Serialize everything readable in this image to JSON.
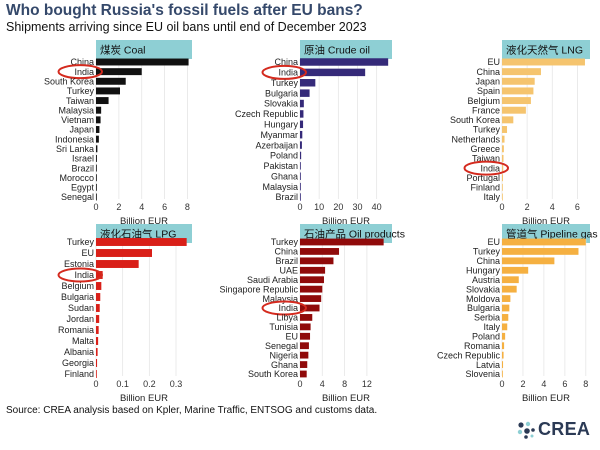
{
  "header": {
    "title": "Who bought Russia's fossil fuels after EU bans?",
    "subtitle": "Shipments arriving since EU oil bans until end of December 2023"
  },
  "footer": {
    "source": "Source: CREA analysis based on Kpler, Marine Traffic, ENTSOG and customs data.",
    "logo_text": "CREA"
  },
  "colors": {
    "panel_header_bg": "#8ecfd4",
    "grid": "#e6e6e6",
    "highlight_ring": "#d42a1e",
    "title": "#35496b"
  },
  "highlight_category": "India",
  "chart_data": [
    {
      "type": "bar",
      "orientation": "horizontal",
      "title": "煤炭  Coal",
      "xlabel": "Billion EUR",
      "color": "#111111",
      "xlim": [
        0,
        8.4
      ],
      "xticks": [
        0,
        2,
        4,
        6,
        8
      ],
      "categories": [
        "China",
        "India",
        "South Korea",
        "Turkey",
        "Taiwan",
        "Malaysia",
        "Vietnam",
        "Japan",
        "Indonesia",
        "Sri Lanka",
        "Israel",
        "Brazil",
        "Morocco",
        "Egypt",
        "Senegal"
      ],
      "values": [
        8.1,
        4.0,
        2.6,
        2.1,
        1.1,
        0.45,
        0.4,
        0.3,
        0.25,
        0.12,
        0.08,
        0.06,
        0.05,
        0.04,
        0.03
      ]
    },
    {
      "type": "bar",
      "orientation": "horizontal",
      "title": "原油  Crude oil",
      "xlabel": "Billion EUR",
      "color": "#352a79",
      "xlim": [
        0,
        48
      ],
      "xticks": [
        0,
        10,
        20,
        30,
        40
      ],
      "categories": [
        "China",
        "India",
        "Turkey",
        "Bulgaria",
        "Slovakia",
        "Czech Republic",
        "Hungary",
        "Myanmar",
        "Azerbaijan",
        "Poland",
        "Pakistan",
        "Ghana",
        "Malaysia",
        "Brazil"
      ],
      "values": [
        46,
        34,
        8,
        5,
        2,
        1.8,
        1.6,
        1.2,
        1.0,
        0.6,
        0.4,
        0.3,
        0.2,
        0.1
      ]
    },
    {
      "type": "bar",
      "orientation": "horizontal",
      "title": "液化天然气  LNG",
      "xlabel": "Billion EUR",
      "color": "#f5c46e",
      "xlim": [
        0,
        7.0
      ],
      "xticks": [
        0,
        2,
        4,
        6
      ],
      "categories": [
        "EU",
        "China",
        "Japan",
        "Spain",
        "Belgium",
        "France",
        "South Korea",
        "Turkey",
        "Netherlands",
        "Greece",
        "Taiwan",
        "India",
        "Portugal",
        "Finland",
        "Italy"
      ],
      "values": [
        6.6,
        3.1,
        2.6,
        2.5,
        2.3,
        1.9,
        0.9,
        0.4,
        0.2,
        0.15,
        0.12,
        0.1,
        0.08,
        0.05,
        0.03
      ]
    },
    {
      "type": "bar",
      "orientation": "horizontal",
      "title": "液化石油气  LPG",
      "xlabel": "Billion EUR",
      "color": "#d91f18",
      "xlim": [
        0,
        0.36
      ],
      "xticks": [
        0,
        0.1,
        0.2,
        0.3
      ],
      "categories": [
        "Turkey",
        "EU",
        "Estonia",
        "India",
        "Belgium",
        "Bulgaria",
        "Sudan",
        "Jordan",
        "Romania",
        "Malta",
        "Albania",
        "Georgia",
        "Finland"
      ],
      "values": [
        0.34,
        0.21,
        0.16,
        0.025,
        0.02,
        0.016,
        0.014,
        0.012,
        0.01,
        0.008,
        0.006,
        0.004,
        0.002
      ]
    },
    {
      "type": "bar",
      "orientation": "horizontal",
      "title": "石油产品  Oil products",
      "xlabel": "Billion EUR",
      "color": "#900a0a",
      "xlim": [
        0,
        16.5
      ],
      "xticks": [
        0,
        4,
        8,
        12
      ],
      "categories": [
        "Turkey",
        "China",
        "Brazil",
        "UAE",
        "Saudi Arabia",
        "Singapore Republic",
        "Malaysia",
        "India",
        "Libya",
        "Tunisia",
        "EU",
        "Senegal",
        "Nigeria",
        "Ghana",
        "South Korea"
      ],
      "values": [
        15,
        7,
        6,
        4.5,
        4.3,
        4.0,
        3.8,
        3.5,
        2.2,
        1.9,
        1.8,
        1.6,
        1.5,
        1.3,
        1.2
      ]
    },
    {
      "type": "bar",
      "orientation": "horizontal",
      "title": "管道气  Pipeline gas",
      "xlabel": "Billion EUR",
      "color": "#f5b041",
      "xlim": [
        0,
        8.4
      ],
      "xticks": [
        0,
        2,
        4,
        6,
        8
      ],
      "categories": [
        "EU",
        "Turkey",
        "China",
        "Hungary",
        "Austria",
        "Slovakia",
        "Moldova",
        "Bulgaria",
        "Serbia",
        "Italy",
        "Poland",
        "Romania",
        "Czech Republic",
        "Latvia",
        "Slovenia"
      ],
      "values": [
        8.0,
        7.3,
        5.0,
        2.5,
        1.6,
        1.4,
        0.8,
        0.7,
        0.6,
        0.5,
        0.3,
        0.2,
        0.15,
        0.1,
        0.05
      ]
    }
  ]
}
